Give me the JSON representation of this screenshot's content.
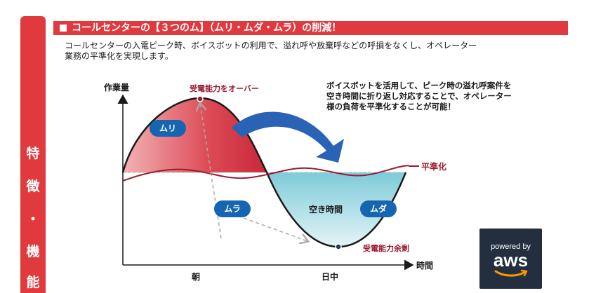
{
  "sidebar": {
    "chars": [
      "特",
      "徴",
      "・",
      "機",
      "能"
    ]
  },
  "heading": {
    "title": "コールセンターの【３つのム】（ムリ・ムダ・ムラ）の削減！"
  },
  "intro": {
    "line1": "コールセンターの入電ピーク時、ボイスボットの利用で、溢れ呼や放棄呼などの呼損をなくし、オペレーター",
    "line2": "業務の平準化を実現します。"
  },
  "diagram": {
    "y_axis_label": "作業量",
    "x_axis_label": "時間",
    "x_ticks": [
      "朝",
      "日中"
    ],
    "over_capacity_label": "受電能力をオーバー",
    "spare_capacity_label": "受電能力余剰",
    "leveling_label": "平準化",
    "idle_time_label": "空き時間",
    "badges": {
      "muri": "ムリ",
      "mura": "ムラ",
      "muda": "ムダ"
    },
    "callout": {
      "line1": "ボイスボットを活用して、ピーク時の溢れ呼案件を",
      "line2": "空き時間に折り返し対応することで、オペレーター",
      "line3": "様の負荷を平準化することが可能！"
    },
    "colors": {
      "accent_red": "#e03a3e",
      "badge_blue": "#1565b0",
      "arrow_blue": "#2a63b6",
      "dark_red": "#9b1b30",
      "muri_fill": "#d9414d",
      "muda_fill": "#8fd0dc"
    }
  },
  "aws_logo": {
    "line1": "powered by",
    "line2": "aws"
  }
}
